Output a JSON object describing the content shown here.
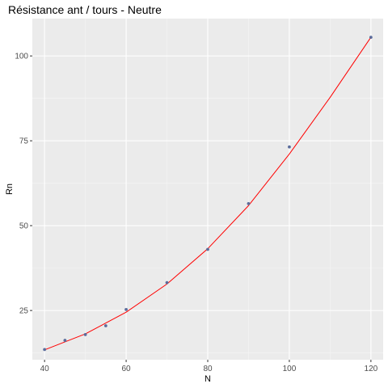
{
  "chart_data": {
    "type": "scatter",
    "title": "Résistance ant / tours - Neutre",
    "xlabel": "N",
    "ylabel": "Rn",
    "xlim": [
      37,
      123
    ],
    "ylim": [
      10.5,
      111
    ],
    "x_ticks": [
      40,
      60,
      80,
      100,
      120
    ],
    "y_ticks": [
      25,
      50,
      75,
      100
    ],
    "x_minor": [
      50,
      70,
      90,
      110
    ],
    "y_minor": [
      12.5,
      37.5,
      62.5,
      87.5
    ],
    "grid": true,
    "points": [
      {
        "x": 40,
        "y": 13.5
      },
      {
        "x": 45,
        "y": 16.2
      },
      {
        "x": 50,
        "y": 17.9
      },
      {
        "x": 55,
        "y": 20.5
      },
      {
        "x": 60,
        "y": 25.3
      },
      {
        "x": 70,
        "y": 33.2
      },
      {
        "x": 80,
        "y": 43.0
      },
      {
        "x": 90,
        "y": 56.5
      },
      {
        "x": 100,
        "y": 73.2
      },
      {
        "x": 120,
        "y": 105.5
      }
    ],
    "fit_curve": {
      "x": [
        40,
        50,
        60,
        70,
        80,
        90,
        100,
        110,
        120
      ],
      "y": [
        13.4,
        18.1,
        24.5,
        32.8,
        43.2,
        55.9,
        71.1,
        87.8,
        105.5
      ]
    },
    "colors": {
      "panel": "#ebebeb",
      "grid_major": "#ffffff",
      "grid_minor": "#f5f5f5",
      "point": "#5b6d9c",
      "curve": "#ff0000",
      "tick": "#333333"
    }
  }
}
